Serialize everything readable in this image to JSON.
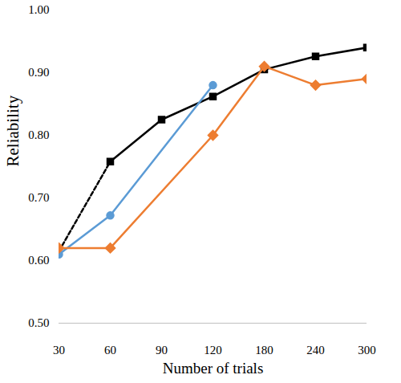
{
  "chart_data": {
    "type": "line",
    "x_label": "Number of trials",
    "y_label": "Reliability",
    "categories": [
      30,
      60,
      90,
      120,
      180,
      240,
      300
    ],
    "series": [
      {
        "color": "#000000",
        "values": [
          0.615,
          0.758,
          null,
          null,
          null,
          null,
          null
        ],
        "marker": "none",
        "line_style": "dashed"
      },
      {
        "color": "#000000",
        "values": [
          null,
          0.758,
          0.825,
          0.862,
          0.905,
          0.926,
          0.94
        ],
        "marker": "square",
        "line_style": "solid"
      },
      {
        "color": "#5b9bd5",
        "values": [
          0.61,
          0.672,
          null,
          0.88,
          null,
          null,
          null
        ],
        "marker": "circle",
        "line_style": "solid"
      },
      {
        "color": "#ed7d31",
        "values": [
          0.62,
          0.62,
          null,
          0.8,
          0.91,
          0.88,
          0.89
        ],
        "marker": "diamond",
        "line_style": "solid"
      }
    ],
    "ylim": [
      0.5,
      1.0
    ],
    "yticks": [
      {
        "value": 0.5,
        "label": "0.50"
      },
      {
        "value": 0.6,
        "label": "0.60"
      },
      {
        "value": 0.7,
        "label": "0.70"
      },
      {
        "value": 0.8,
        "label": "0.80"
      },
      {
        "value": 0.9,
        "label": "0.90"
      },
      {
        "value": 1.0,
        "label": "1.00"
      }
    ],
    "grid": false
  }
}
